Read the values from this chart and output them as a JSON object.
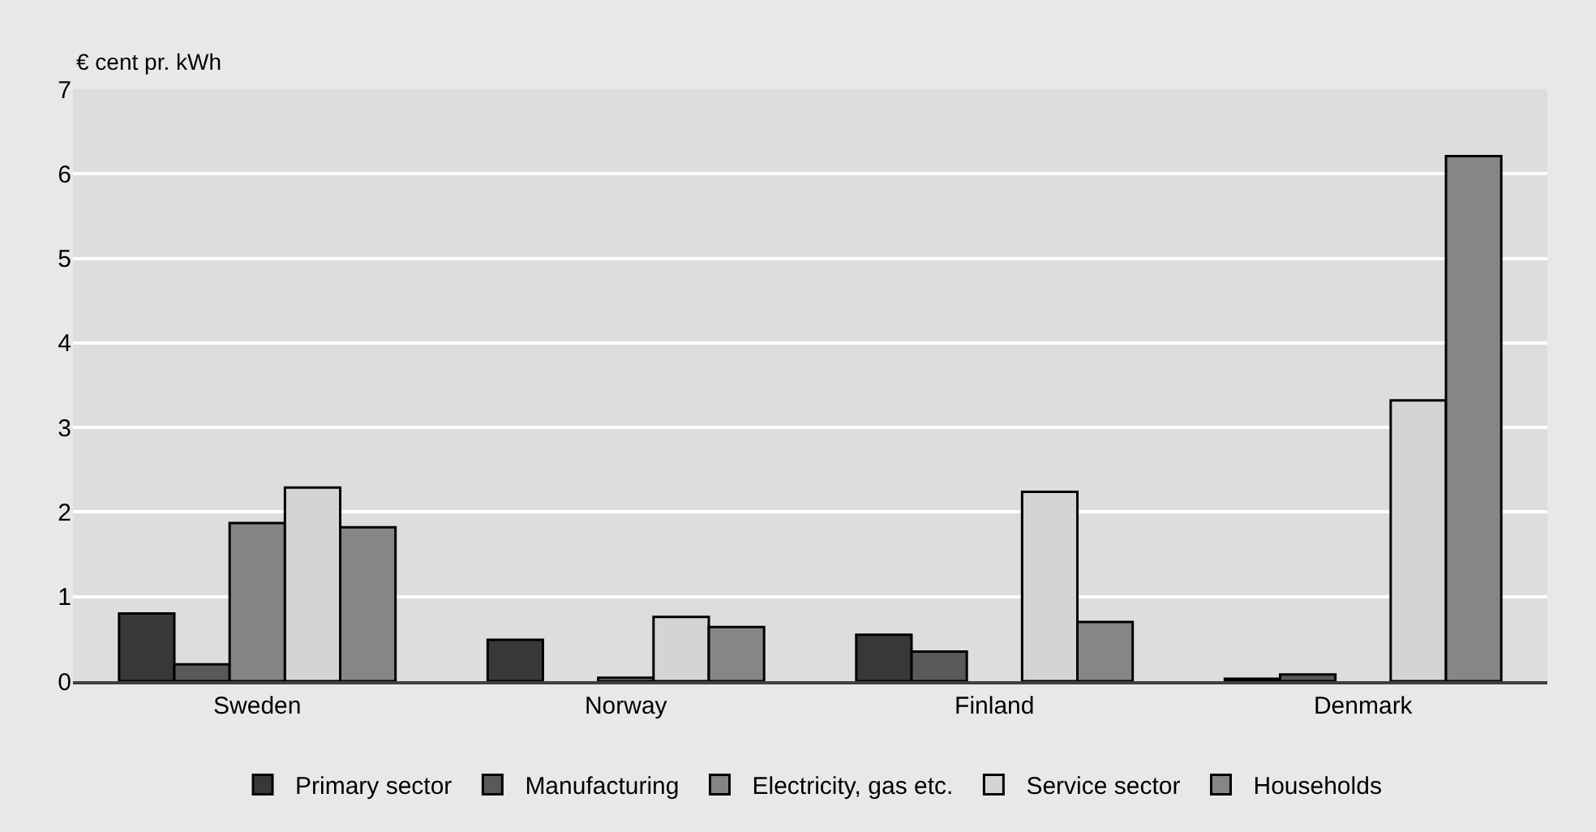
{
  "chart_data": {
    "type": "bar",
    "ylabel": "€ cent pr. kWh",
    "categories": [
      "Sweden",
      "Norway",
      "Finland",
      "Denmark"
    ],
    "series": [
      {
        "name": "Primary sector",
        "color": "#383838",
        "values": [
          0.8,
          0.49,
          0.55,
          0.03
        ]
      },
      {
        "name": "Manufacturing",
        "color": "#595959",
        "values": [
          0.2,
          0,
          0.35,
          0.08
        ]
      },
      {
        "name": "Electricity, gas etc.",
        "color": "#858585",
        "values": [
          1.87,
          0.04,
          0,
          0
        ]
      },
      {
        "name": "Service sector",
        "color": "#d4d4d4",
        "values": [
          2.29,
          0.76,
          2.24,
          3.32
        ]
      },
      {
        "name": "Households",
        "color": "#868686",
        "values": [
          1.82,
          0.64,
          0.7,
          6.21
        ]
      }
    ],
    "ylim": [
      0,
      7
    ],
    "yticks": [
      0,
      1,
      2,
      3,
      4,
      5,
      6,
      7
    ],
    "grid": "y",
    "legend": "bottom"
  }
}
